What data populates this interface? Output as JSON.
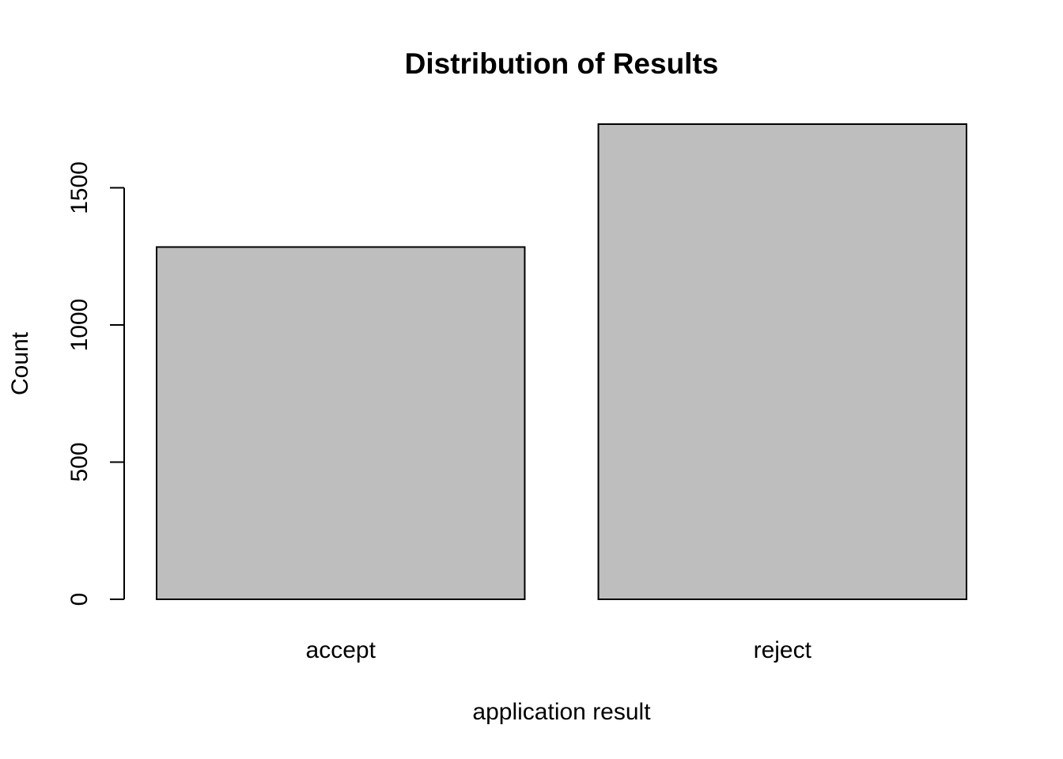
{
  "chart_data": {
    "type": "bar",
    "title": "Distribution of Results",
    "xlabel": "application result",
    "ylabel": "Count",
    "categories": [
      "accept",
      "reject"
    ],
    "values": [
      1284,
      1732
    ],
    "ylim": [
      0,
      1732
    ],
    "yticks": [
      0,
      500,
      1000,
      1500
    ],
    "ytick_labels": [
      "0",
      "500",
      "1000",
      "1500"
    ],
    "grid": false,
    "legend": "none",
    "bar_color": "#bebebe",
    "bar_edge_color": "#000000"
  }
}
